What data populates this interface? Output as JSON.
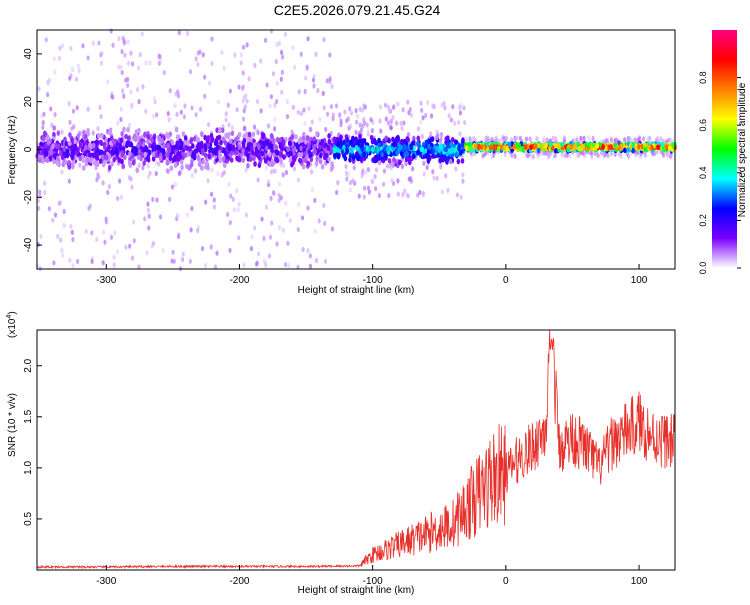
{
  "title": "C2E5.2026.079.21.45.G24",
  "chart_data": [
    {
      "type": "heatmap",
      "xlabel": "Height of straight line (km)",
      "ylabel": "Frequency (Hz)",
      "xlim": [
        -352,
        127
      ],
      "ylim": [
        -50,
        50
      ],
      "xticks": [
        -300,
        -200,
        -100,
        0,
        100
      ],
      "yticks": [
        -40,
        -20,
        0,
        20,
        40
      ],
      "grid": false,
      "colorbar": {
        "label": "Normalized spectral amplitude",
        "range": [
          0,
          1
        ],
        "ticks": [
          "0.0",
          "0.2",
          "0.4",
          "0.6",
          "0.8"
        ],
        "tick_values": [
          0,
          0.2,
          0.4,
          0.6,
          0.8
        ],
        "colormap": [
          "#ffffff",
          "#7a00ff",
          "#0000ff",
          "#00ffff",
          "#00ff00",
          "#ffff00",
          "#ff7f00",
          "#ff0000",
          "#ff007f"
        ]
      },
      "regions": [
        {
          "x_range": [
            -352,
            -130
          ],
          "freq_center": 0,
          "core_halfwidth": 10,
          "scatter_halfwidth": 50,
          "amplitude": 0.15
        },
        {
          "x_range": [
            -130,
            -30
          ],
          "freq_center": 0,
          "core_halfwidth": 8,
          "scatter_halfwidth": 20,
          "amplitude": 0.35
        },
        {
          "x_range": [
            -30,
            127
          ],
          "freq_center": 1,
          "core_halfwidth": 2,
          "scatter_halfwidth": 4,
          "amplitude": 0.85
        }
      ]
    },
    {
      "type": "line",
      "xlabel": "Height of straight line (km)",
      "ylabel": "SNR (10 * v/v)",
      "y_multiplier": "(x10",
      "y_multiplier_exp": "4",
      "y_multiplier_close": ")",
      "xlim": [
        -352,
        127
      ],
      "ylim": [
        0,
        23500
      ],
      "xticks": [
        -300,
        -200,
        -100,
        0,
        100
      ],
      "yticks": [
        5000,
        10000,
        15000,
        20000
      ],
      "ytick_labels": [
        "0.5",
        "1.0",
        "1.5",
        "2.0"
      ],
      "line_color": "#e8302a",
      "grid": false,
      "series": [
        {
          "x": [
            -352,
            -300,
            -250,
            -200,
            -150,
            -110,
            -100,
            -80,
            -60,
            -40,
            -30,
            -20,
            -10,
            0,
            10,
            20,
            30,
            34,
            40,
            50,
            60,
            70,
            80,
            90,
            100,
            110,
            127
          ],
          "y": [
            300,
            300,
            350,
            350,
            350,
            400,
            1500,
            2500,
            3500,
            4500,
            6000,
            7500,
            9000,
            9500,
            11000,
            12000,
            14000,
            23500,
            12000,
            13000,
            12000,
            10000,
            12500,
            13500,
            14500,
            13000,
            12500
          ]
        }
      ]
    }
  ]
}
